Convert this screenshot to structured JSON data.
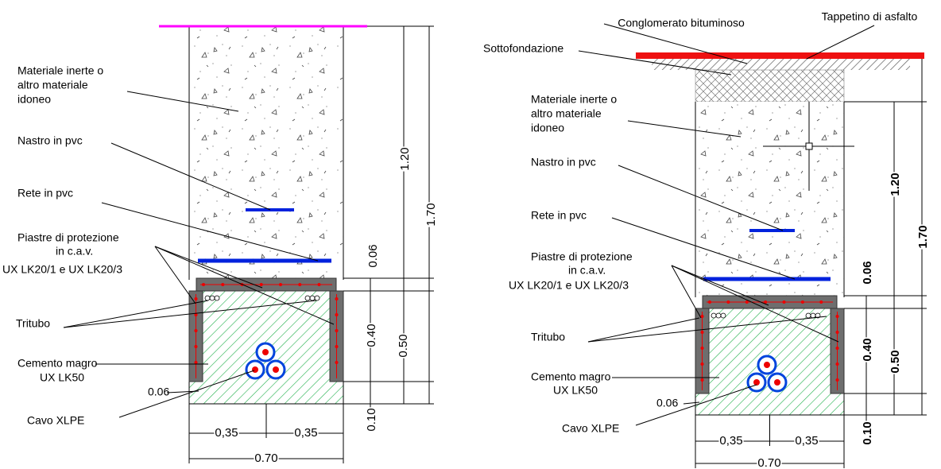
{
  "left": {
    "material": [
      "Materiale inerte o",
      "altro materiale",
      "idoneo"
    ],
    "tape": "Nastro in pvc",
    "net": "Rete in pvc",
    "plates": [
      "Piastre di protezione",
      "in c.a.v.",
      "UX LK20/1 e UX LK20/3"
    ],
    "tritubo": "Tritubo",
    "concrete": [
      "Cemento magro",
      "UX LK50"
    ],
    "offset": "0.06",
    "cable": "Cavo XLPE",
    "dims": {
      "upper": "1.20",
      "total": "1.70",
      "slab": "0.06",
      "wall": "0.40",
      "lower": "0.50",
      "base": "0.10",
      "half_left": "0,35",
      "half_right": "0,35",
      "width": "0.70"
    }
  },
  "right": {
    "binder": "Conglomerato bituminoso",
    "asphalt": "Tappetino di asfalto",
    "subbase": "Sottofondazione",
    "material": [
      "Materiale inerte o",
      "altro materiale",
      "idoneo"
    ],
    "tape": "Nastro in pvc",
    "net": "Rete in pvc",
    "plates": [
      "Piastre di protezione",
      "in c.a.v.",
      "UX LK20/1 e UX LK20/3"
    ],
    "tritubo": "Tritubo",
    "concrete": [
      "Cemento magro",
      "UX LK50"
    ],
    "offset": "0.06",
    "cable": "Cavo XLPE",
    "dims": {
      "upper": "1.20",
      "total": "1.70",
      "slab": "0.06",
      "wall": "0.40",
      "lower": "0.50",
      "base": "0.10",
      "half_left": "0,35",
      "half_right": "0,35",
      "width": "0.70"
    }
  }
}
